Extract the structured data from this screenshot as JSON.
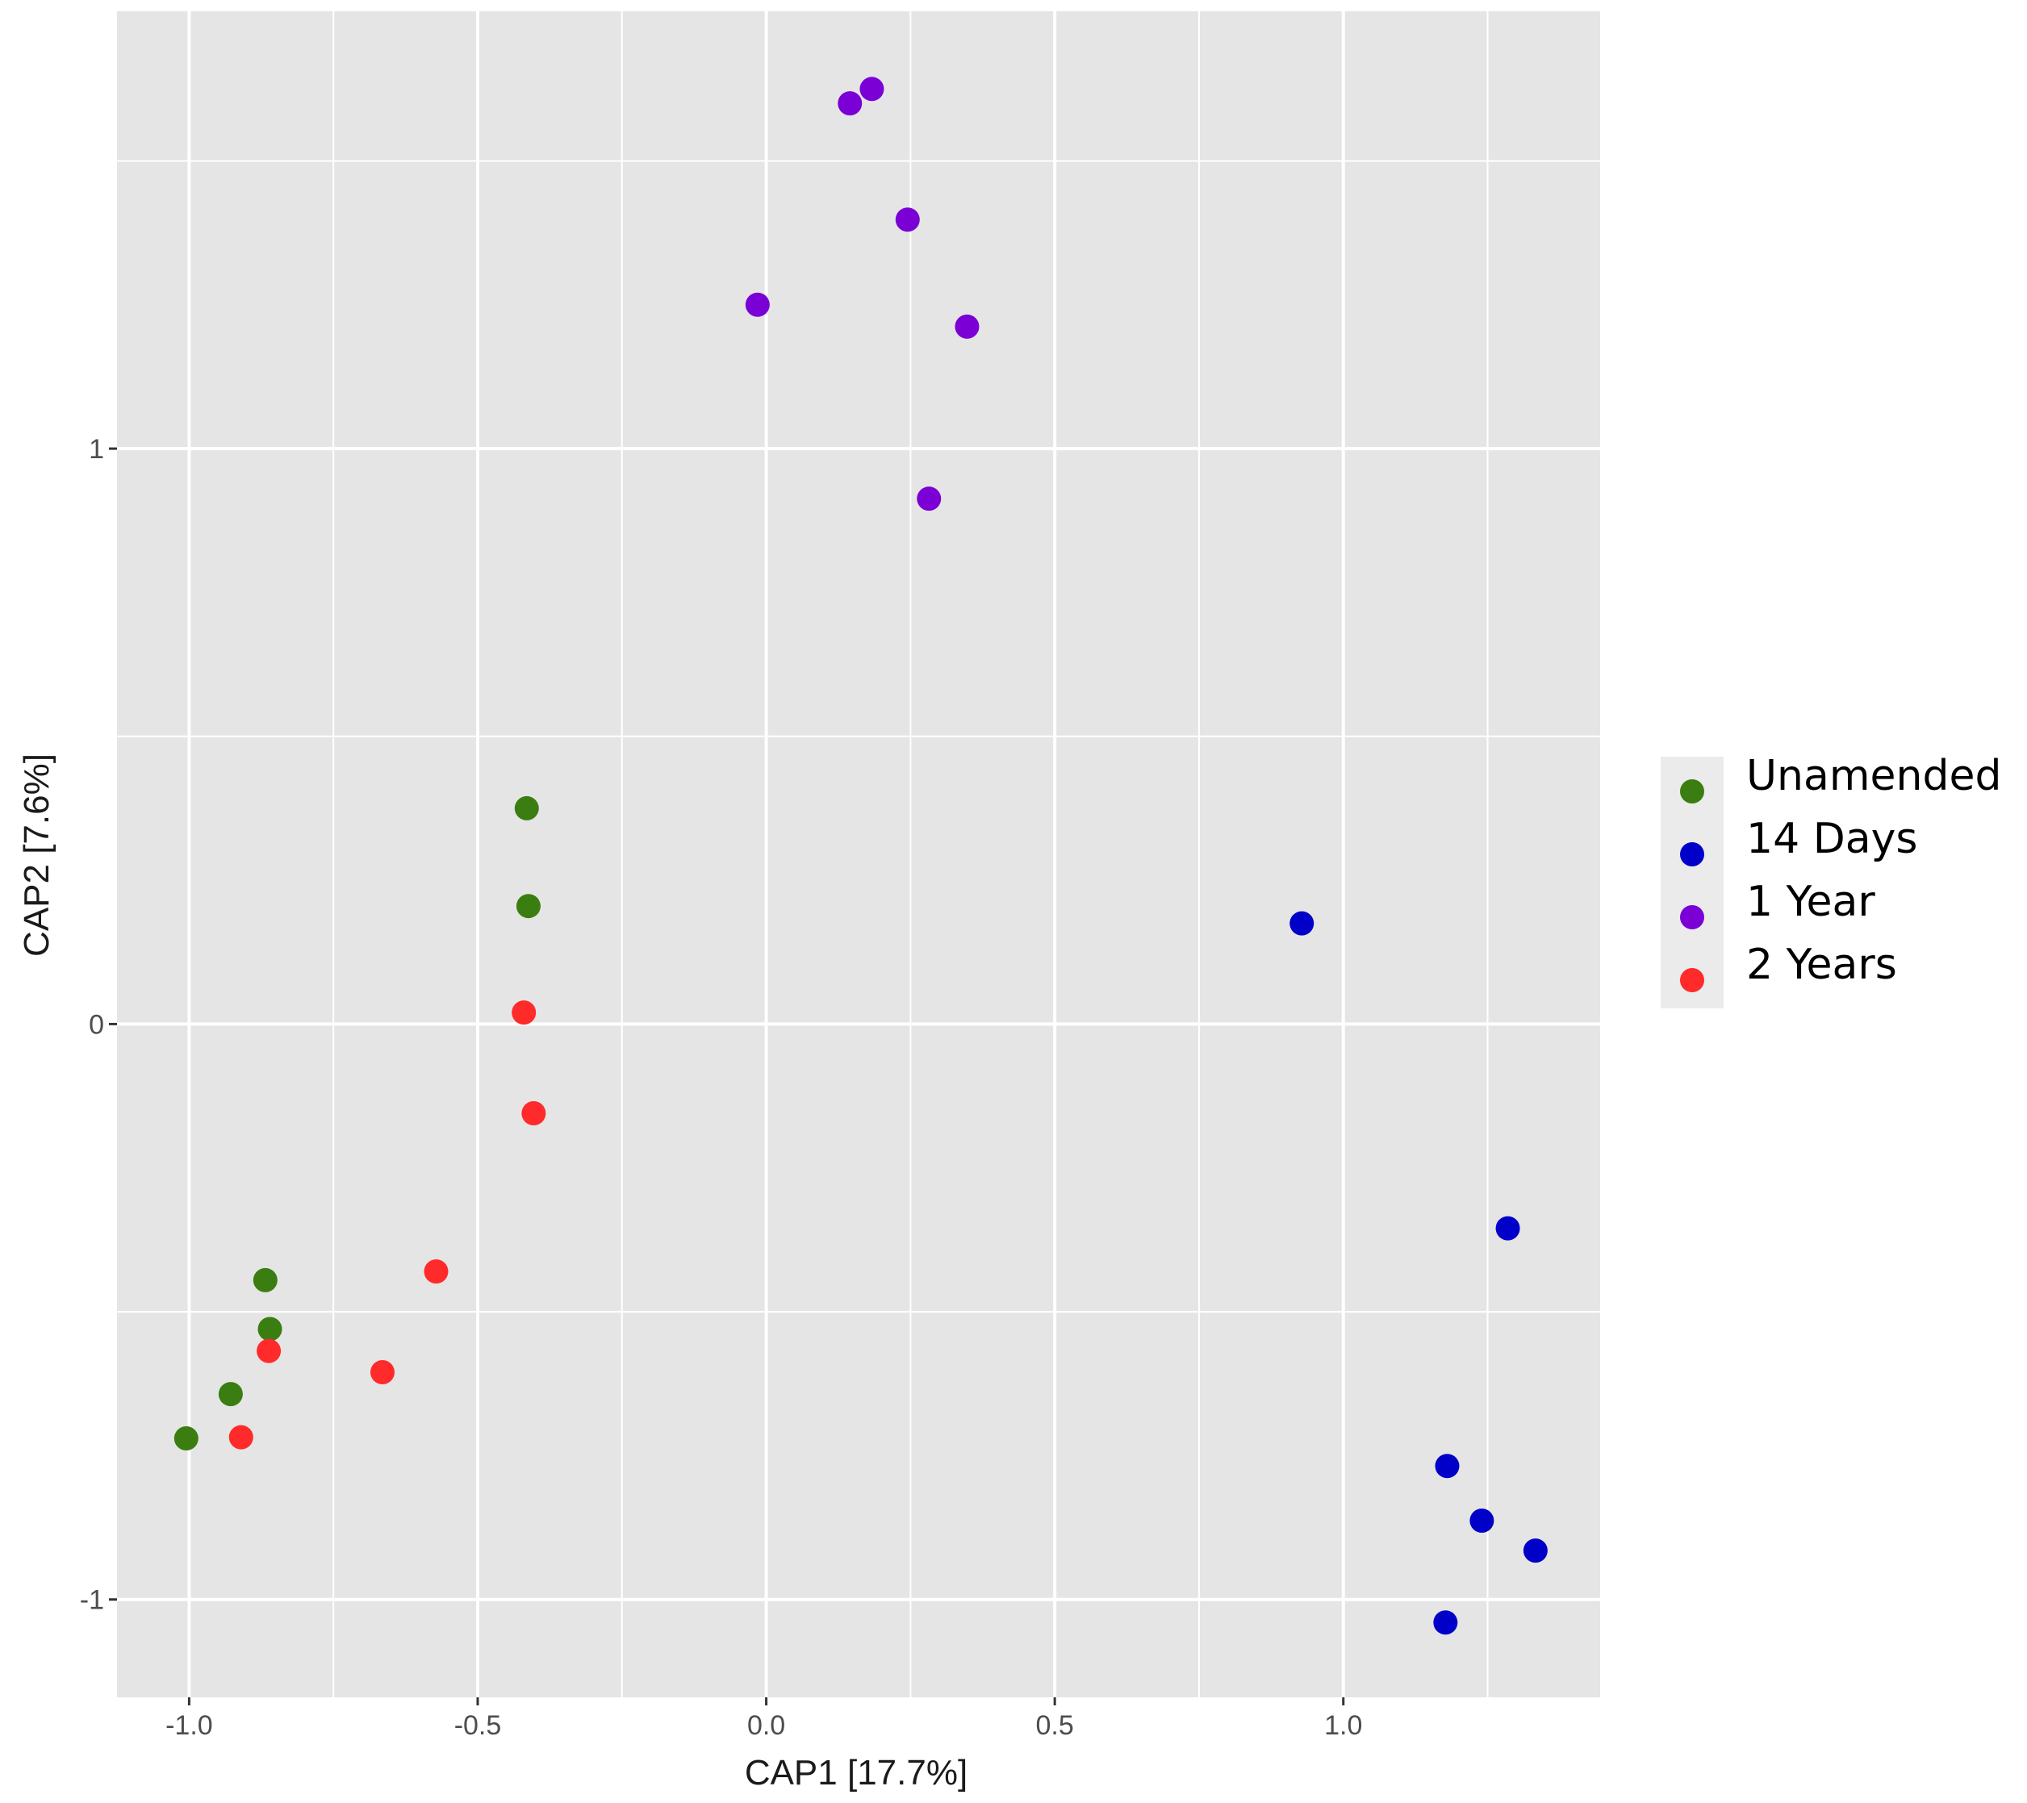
{
  "chart_data": {
    "type": "scatter",
    "title": "",
    "xlabel": "CAP1   [17.7%]",
    "ylabel": "CAP2   [7.6%]",
    "xlim": [
      -1.125,
      1.445
    ],
    "ylim": [
      -1.17,
      1.76
    ],
    "x_ticks": [
      -1.0,
      -0.5,
      0.0,
      0.5,
      1.0
    ],
    "x_tick_labels": [
      "-1.0",
      "-0.5",
      "0.0",
      "0.5",
      "1.0"
    ],
    "y_ticks": [
      -1,
      0,
      1
    ],
    "y_tick_labels": [
      "-1",
      "0",
      "1"
    ],
    "grid": true,
    "legend_position": "right",
    "series": [
      {
        "name": "Unamended",
        "color": "#3a7d10",
        "points": [
          {
            "x": -0.415,
            "y": 0.375
          },
          {
            "x": -0.412,
            "y": 0.205
          },
          {
            "x": -0.868,
            "y": -0.445
          },
          {
            "x": -0.86,
            "y": -0.53
          },
          {
            "x": -0.928,
            "y": -0.643
          },
          {
            "x": -1.005,
            "y": -0.72
          }
        ]
      },
      {
        "name": "14 Days",
        "color": "#0000c8",
        "points": [
          {
            "x": 0.928,
            "y": 0.175
          },
          {
            "x": 1.285,
            "y": -0.355
          },
          {
            "x": 1.18,
            "y": -0.768
          },
          {
            "x": 1.24,
            "y": -0.863
          },
          {
            "x": 1.333,
            "y": -0.915
          },
          {
            "x": 1.177,
            "y": -1.04
          }
        ]
      },
      {
        "name": "1 Year",
        "color": "#7a00d6",
        "points": [
          {
            "x": 0.183,
            "y": 1.625
          },
          {
            "x": 0.145,
            "y": 1.6
          },
          {
            "x": 0.245,
            "y": 1.398
          },
          {
            "x": -0.015,
            "y": 1.25
          },
          {
            "x": 0.348,
            "y": 1.212
          },
          {
            "x": 0.282,
            "y": 0.913
          }
        ]
      },
      {
        "name": "2 Years",
        "color": "#ff2a2a",
        "points": [
          {
            "x": -0.42,
            "y": 0.02
          },
          {
            "x": -0.403,
            "y": -0.155
          },
          {
            "x": -0.572,
            "y": -0.43
          },
          {
            "x": -0.862,
            "y": -0.568
          },
          {
            "x": -0.665,
            "y": -0.605
          },
          {
            "x": -0.91,
            "y": -0.718
          }
        ]
      }
    ]
  },
  "style": {
    "panel_background": "#e5e5e5",
    "grid_color": "#ffffff",
    "tick_color": "#333333",
    "text_color": "#1a1a1a",
    "legend_key_background": "#ebebeb"
  }
}
